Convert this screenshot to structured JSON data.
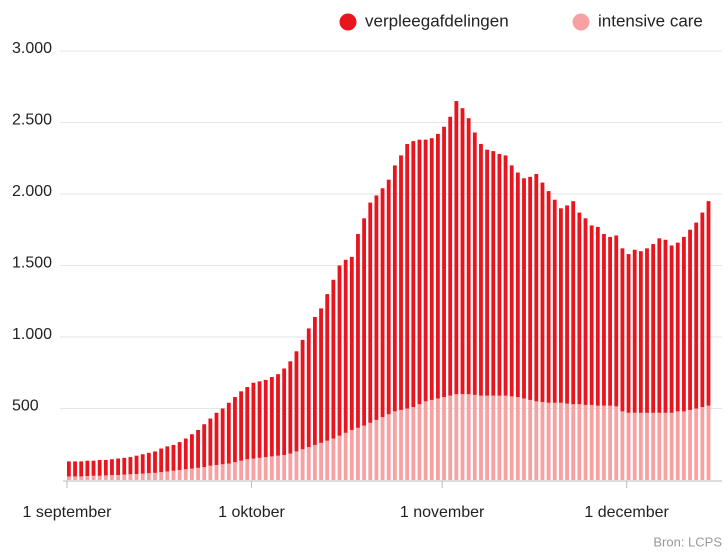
{
  "chart_data": {
    "type": "stacked_bar",
    "source": "Bron: LCPS",
    "categories": [
      "1 september",
      null,
      null,
      null,
      null,
      null,
      null,
      null,
      null,
      null,
      null,
      null,
      null,
      null,
      null,
      null,
      null,
      null,
      null,
      null,
      null,
      null,
      null,
      null,
      null,
      null,
      null,
      null,
      null,
      null,
      "1 oktober",
      null,
      null,
      null,
      null,
      null,
      null,
      null,
      null,
      null,
      null,
      null,
      null,
      null,
      null,
      null,
      null,
      null,
      null,
      null,
      null,
      null,
      null,
      null,
      null,
      null,
      null,
      null,
      null,
      null,
      null,
      "1 november",
      null,
      null,
      null,
      null,
      null,
      null,
      null,
      null,
      null,
      null,
      null,
      null,
      null,
      null,
      null,
      null,
      null,
      null,
      null,
      null,
      null,
      null,
      null,
      null,
      null,
      null,
      null,
      null,
      null,
      "1 december",
      null,
      null,
      null,
      null,
      null,
      null,
      null,
      null,
      null,
      null,
      null,
      null,
      null
    ],
    "series": [
      {
        "name": "verpleegafdelingen",
        "color": "#e8141e",
        "values": [
          105,
          105,
          105,
          107,
          105,
          110,
          108,
          110,
          115,
          117,
          120,
          128,
          135,
          142,
          150,
          165,
          175,
          180,
          195,
          215,
          240,
          265,
          300,
          330,
          365,
          390,
          425,
          455,
          485,
          505,
          530,
          535,
          540,
          555,
          570,
          605,
          645,
          700,
          765,
          830,
          895,
          940,
          1025,
          1110,
          1190,
          1210,
          1210,
          1355,
          1450,
          1540,
          1570,
          1600,
          1640,
          1720,
          1780,
          1850,
          1860,
          1850,
          1830,
          1830,
          1850,
          1890,
          1950,
          2050,
          2000,
          1930,
          1835,
          1760,
          1720,
          1710,
          1690,
          1680,
          1615,
          1570,
          1540,
          1560,
          1590,
          1535,
          1480,
          1420,
          1360,
          1385,
          1420,
          1340,
          1305,
          1255,
          1250,
          1200,
          1180,
          1195,
          1140,
          1110,
          1140,
          1130,
          1150,
          1180,
          1220,
          1210,
          1170,
          1180,
          1220,
          1260,
          1300,
          1360,
          1430
        ]
      },
      {
        "name": "intensive care",
        "color": "#f7a1a3",
        "values": [
          25,
          25,
          25,
          28,
          30,
          30,
          32,
          35,
          35,
          38,
          40,
          42,
          45,
          48,
          50,
          55,
          60,
          65,
          70,
          75,
          80,
          85,
          90,
          100,
          105,
          110,
          115,
          125,
          135,
          145,
          150,
          155,
          160,
          165,
          170,
          175,
          185,
          200,
          215,
          230,
          245,
          260,
          275,
          290,
          310,
          330,
          350,
          365,
          380,
          400,
          420,
          440,
          460,
          480,
          490,
          500,
          510,
          530,
          550,
          560,
          570,
          580,
          590,
          600,
          600,
          600,
          595,
          590,
          590,
          590,
          590,
          590,
          585,
          580,
          570,
          560,
          550,
          545,
          540,
          540,
          540,
          535,
          530,
          530,
          525,
          525,
          520,
          520,
          520,
          515,
          480,
          470,
          470,
          470,
          470,
          470,
          470,
          470,
          470,
          480,
          480,
          490,
          500,
          510,
          520
        ]
      }
    ],
    "ylim": [
      0,
      3000
    ],
    "yticks": [
      500,
      {
        "value": 1000,
        "label": "1.000"
      },
      {
        "value": 1500,
        "label": "1.500"
      },
      {
        "value": 2000,
        "label": "2.000"
      },
      {
        "value": 2500,
        "label": "2.500"
      },
      {
        "value": 3000,
        "label": "3.000"
      }
    ],
    "grid": true,
    "legend": "top-right"
  }
}
